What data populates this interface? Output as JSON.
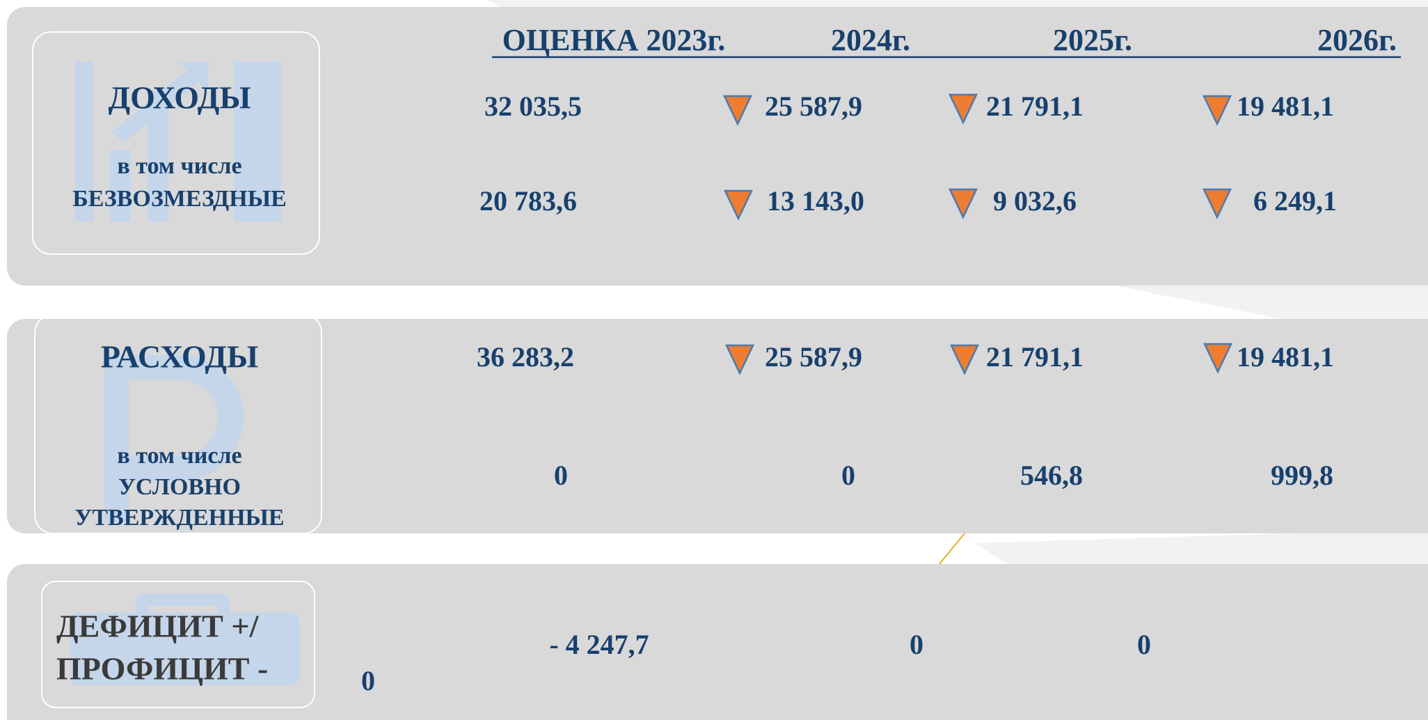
{
  "header": {
    "columns": [
      "ОЦЕНКА 2023г.",
      "2024г.",
      "2025г.",
      "2026г."
    ]
  },
  "income": {
    "label": "ДОХОДЫ",
    "values": [
      "32 035,5",
      "25 587,9",
      "21 791,1",
      "19 481,1"
    ],
    "sub_label": [
      "в том числе",
      "БЕЗВОЗМЕЗДНЫЕ"
    ],
    "sub_values": [
      "20 783,6",
      "13 143,0",
      "9 032,6",
      "6 249,1"
    ]
  },
  "expenses": {
    "label": "РАСХОДЫ",
    "values": [
      "36 283,2",
      "25 587,9",
      "21 791,1",
      "19 481,1"
    ],
    "sub_label": [
      "в том числе",
      "УСЛОВНО",
      "УТВЕРЖДЕННЫЕ"
    ],
    "sub_values": [
      "0",
      "0",
      "546,8",
      "999,8"
    ]
  },
  "balance": {
    "label": [
      "ДЕФИЦИТ +/",
      "ПРОФИЦИТ -"
    ],
    "values": [
      "- 4 247,7",
      "0",
      "0",
      "0"
    ]
  }
}
